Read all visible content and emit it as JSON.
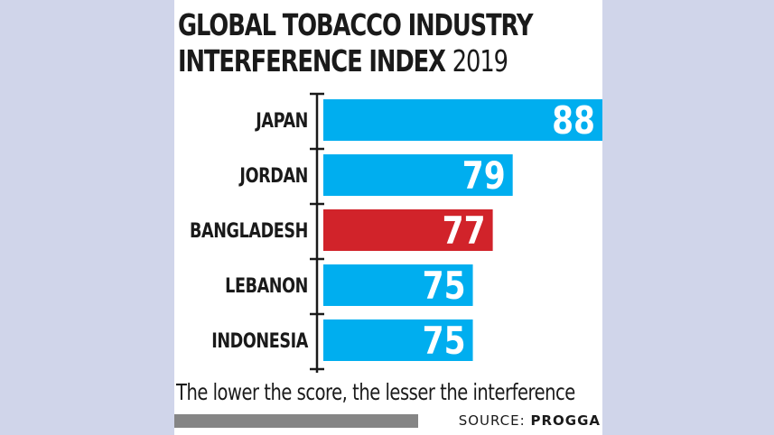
{
  "chart_data": {
    "type": "bar",
    "orientation": "horizontal",
    "title_main": "GLOBAL TOBACCO INDUSTRY INTERFERENCE INDEX",
    "title_year": "2019",
    "categories": [
      "JAPAN",
      "JORDAN",
      "BANGLADESH",
      "LEBANON",
      "INDONESIA"
    ],
    "values": [
      88,
      79,
      77,
      75,
      75
    ],
    "bar_colors": [
      "#00aeef",
      "#00aeef",
      "#d1232a",
      "#00aeef",
      "#00aeef"
    ],
    "xlim": [
      60,
      88
    ]
  },
  "footer": {
    "note": "The lower the score, the lesser the interference",
    "source_label": "SOURCE:",
    "source_name": "PROGGA"
  }
}
